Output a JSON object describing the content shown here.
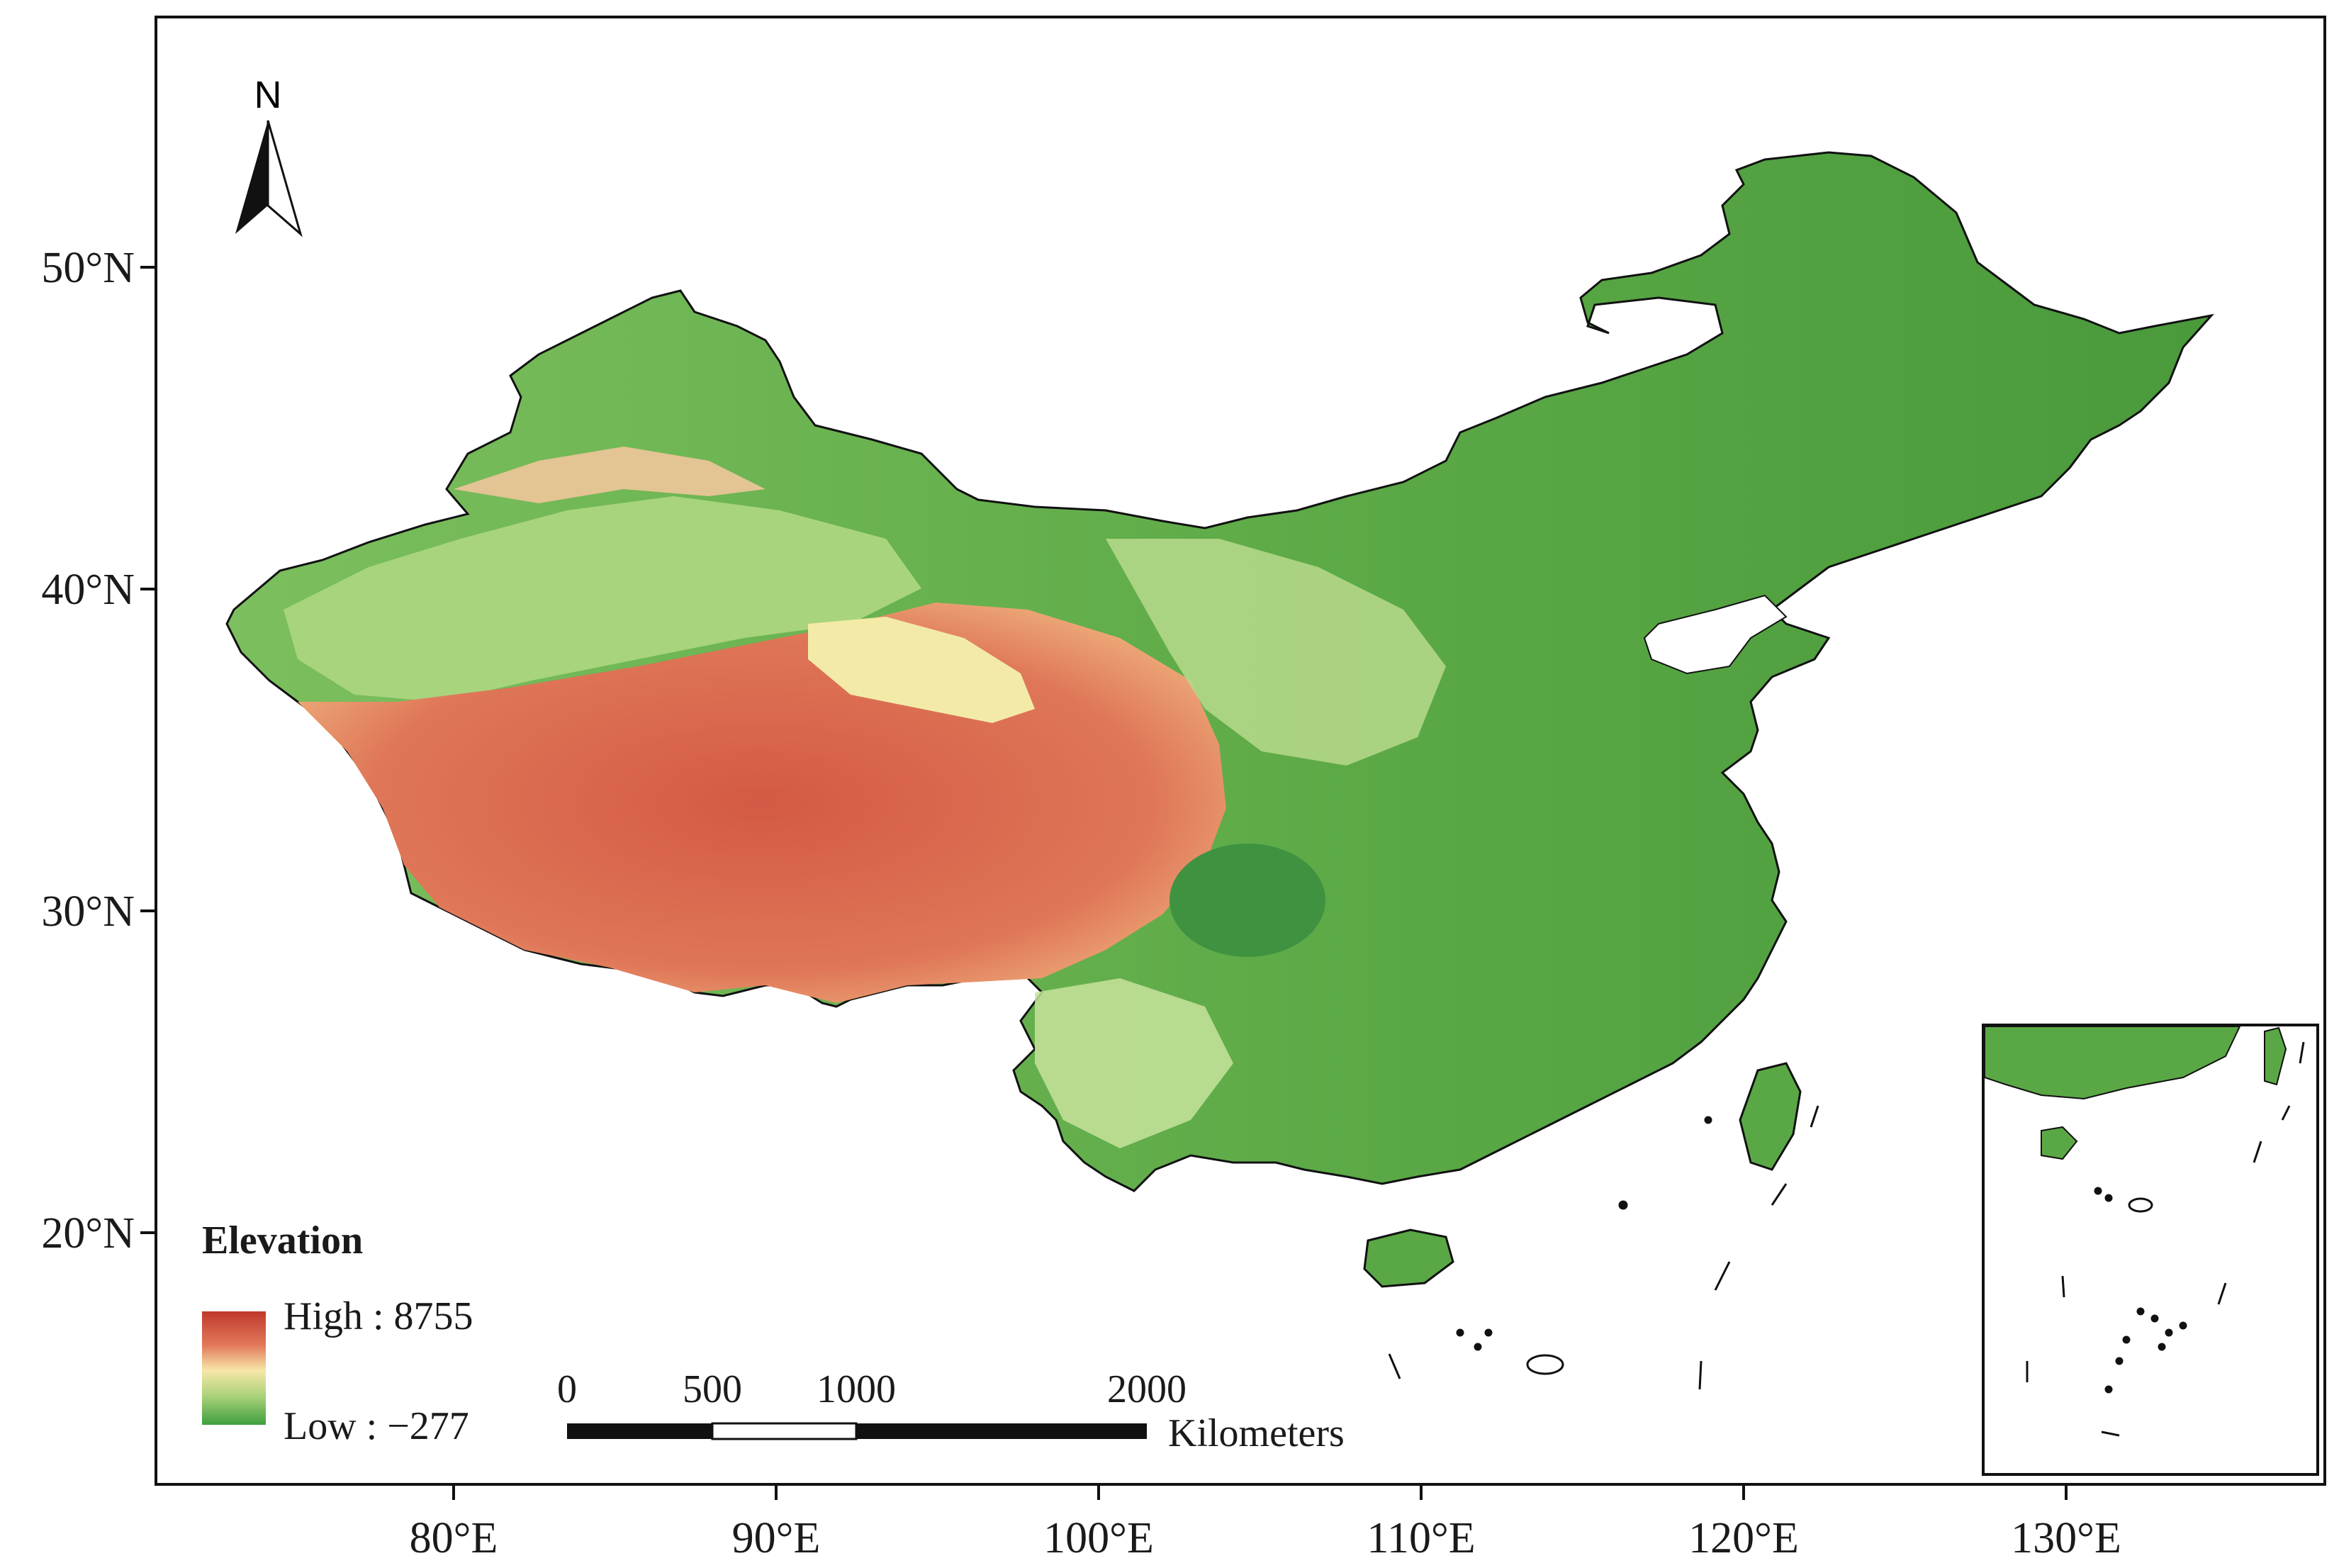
{
  "map": {
    "north_label": "N",
    "lat_labels": [
      "50°N",
      "40°N",
      "30°N",
      "20°N"
    ],
    "lon_labels": [
      "80°E",
      "90°E",
      "100°E",
      "110°E",
      "120°E",
      "130°E"
    ],
    "legend": {
      "title": "Elevation",
      "high_label": "High : 8755",
      "low_label": "Low : −277",
      "high_value": 8755,
      "low_value": -277,
      "colors": [
        "#c0392b",
        "#e2795b",
        "#f7e7a8",
        "#a9d27a",
        "#3f9e3f"
      ]
    },
    "scale_bar": {
      "ticks": [
        "0",
        "500",
        "1000",
        "2000"
      ],
      "units": "Kilometers"
    },
    "colors": {
      "lowland": "#4e9f40",
      "midland": "#9fce7c",
      "plateau": "#d9664b",
      "highland_light": "#f3e7a8",
      "border": "#111111"
    }
  }
}
